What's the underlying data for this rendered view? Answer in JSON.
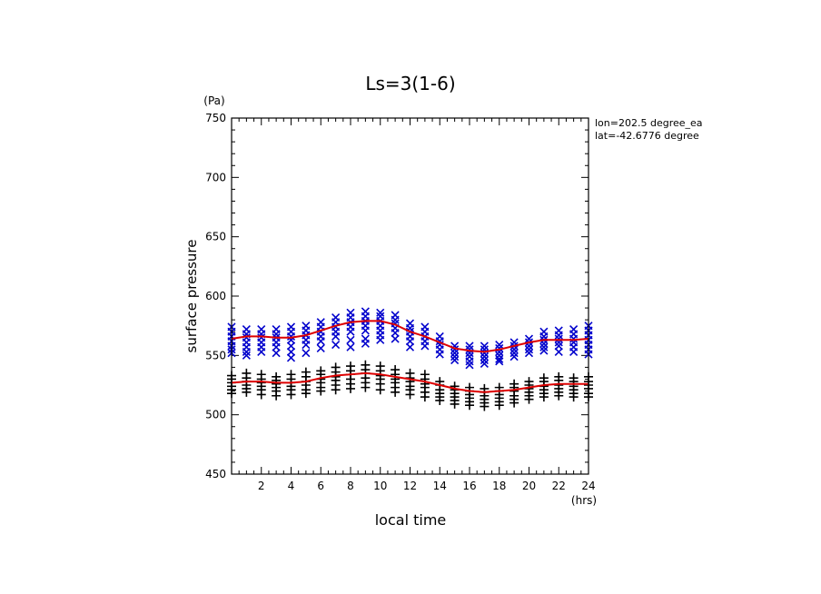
{
  "chart_data": {
    "type": "scatter",
    "title": "Ls=3(1-6)",
    "xlabel": "local time",
    "ylabel": "surface pressure",
    "x_unit": "(hrs)",
    "y_unit": "(Pa)",
    "xlim": [
      0,
      24
    ],
    "ylim": [
      450,
      750
    ],
    "x_ticks": [
      2,
      4,
      6,
      8,
      10,
      12,
      14,
      16,
      18,
      20,
      22,
      24
    ],
    "y_ticks": [
      450,
      500,
      550,
      600,
      650,
      700,
      750
    ],
    "annotations": [
      "lon=202.5 degree_ea",
      "lat=-42.6776 degree"
    ],
    "colors": {
      "upper_points": "#0000cc",
      "lower_points": "#000000",
      "fit": "#dd0000"
    },
    "series": [
      {
        "marker": "x",
        "x": [
          0,
          0,
          0,
          0,
          0,
          0,
          0,
          1,
          1,
          1,
          1,
          1,
          1,
          1,
          2,
          2,
          2,
          2,
          2,
          2,
          3,
          3,
          3,
          3,
          3,
          3,
          4,
          4,
          4,
          4,
          4,
          4,
          4,
          5,
          5,
          5,
          5,
          5,
          5,
          6,
          6,
          6,
          6,
          6,
          6,
          7,
          7,
          7,
          7,
          7,
          7,
          8,
          8,
          8,
          8,
          8,
          8,
          8,
          9,
          9,
          9,
          9,
          9,
          9,
          9,
          10,
          10,
          10,
          10,
          10,
          10,
          10,
          11,
          11,
          11,
          11,
          11,
          11,
          12,
          12,
          12,
          12,
          12,
          12,
          13,
          13,
          13,
          13,
          13,
          14,
          14,
          14,
          14,
          14,
          15,
          15,
          15,
          15,
          15,
          16,
          16,
          16,
          16,
          16,
          16,
          17,
          17,
          17,
          17,
          17,
          17,
          18,
          18,
          18,
          18,
          18,
          18,
          19,
          19,
          19,
          19,
          19,
          20,
          20,
          20,
          20,
          20,
          21,
          21,
          21,
          21,
          21,
          21,
          22,
          22,
          22,
          22,
          22,
          22,
          23,
          23,
          23,
          23,
          23,
          23,
          24,
          24,
          24,
          24,
          24,
          24,
          24
        ],
        "y": [
          574,
          570,
          566,
          562,
          558,
          555,
          552,
          572,
          568,
          565,
          561,
          557,
          553,
          550,
          572,
          568,
          565,
          561,
          557,
          553,
          572,
          568,
          565,
          561,
          557,
          552,
          574,
          570,
          566,
          563,
          558,
          553,
          548,
          575,
          571,
          567,
          563,
          559,
          552,
          578,
          574,
          570,
          566,
          562,
          556,
          582,
          578,
          574,
          570,
          566,
          559,
          586,
          582,
          578,
          574,
          570,
          563,
          557,
          587,
          583,
          579,
          575,
          571,
          564,
          560,
          586,
          583,
          579,
          575,
          571,
          567,
          563,
          584,
          580,
          577,
          573,
          569,
          564,
          577,
          573,
          570,
          566,
          562,
          557,
          574,
          570,
          566,
          562,
          558,
          566,
          562,
          559,
          555,
          551,
          558,
          555,
          552,
          549,
          546,
          558,
          555,
          552,
          549,
          545,
          542,
          558,
          555,
          552,
          549,
          546,
          543,
          559,
          556,
          553,
          550,
          547,
          545,
          561,
          558,
          555,
          552,
          549,
          564,
          561,
          558,
          555,
          552,
          570,
          566,
          563,
          560,
          557,
          554,
          571,
          567,
          564,
          561,
          558,
          553,
          572,
          568,
          564,
          561,
          557,
          553,
          575,
          571,
          567,
          563,
          559,
          555,
          551
        ]
      },
      {
        "marker": "+",
        "x": [
          0,
          0,
          0,
          0,
          0,
          0,
          1,
          1,
          1,
          1,
          1,
          1,
          2,
          2,
          2,
          2,
          2,
          2,
          3,
          3,
          3,
          3,
          3,
          3,
          4,
          4,
          4,
          4,
          4,
          4,
          5,
          5,
          5,
          5,
          5,
          5,
          6,
          6,
          6,
          6,
          6,
          6,
          7,
          7,
          7,
          7,
          7,
          7,
          8,
          8,
          8,
          8,
          8,
          8,
          9,
          9,
          9,
          9,
          9,
          9,
          10,
          10,
          10,
          10,
          10,
          10,
          11,
          11,
          11,
          11,
          11,
          11,
          12,
          12,
          12,
          12,
          12,
          12,
          13,
          13,
          13,
          13,
          13,
          13,
          14,
          14,
          14,
          14,
          14,
          14,
          15,
          15,
          15,
          15,
          15,
          15,
          16,
          16,
          16,
          16,
          16,
          16,
          17,
          17,
          17,
          17,
          17,
          17,
          18,
          18,
          18,
          18,
          18,
          18,
          19,
          19,
          19,
          19,
          19,
          19,
          20,
          20,
          20,
          20,
          20,
          20,
          21,
          21,
          21,
          21,
          21,
          21,
          22,
          22,
          22,
          22,
          22,
          22,
          23,
          23,
          23,
          23,
          23,
          23,
          24,
          24,
          24,
          24,
          24,
          24
        ],
        "y": [
          533,
          530,
          527,
          524,
          521,
          518,
          535,
          531,
          528,
          525,
          522,
          519,
          534,
          530,
          527,
          524,
          521,
          517,
          532,
          529,
          526,
          523,
          520,
          516,
          534,
          530,
          527,
          524,
          521,
          517,
          536,
          532,
          528,
          525,
          521,
          518,
          537,
          534,
          530,
          527,
          523,
          520,
          540,
          536,
          532,
          529,
          525,
          521,
          541,
          537,
          534,
          530,
          526,
          522,
          542,
          538,
          535,
          531,
          527,
          523,
          541,
          537,
          533,
          530,
          526,
          521,
          538,
          534,
          530,
          527,
          523,
          519,
          535,
          531,
          528,
          524,
          521,
          517,
          534,
          530,
          526,
          523,
          519,
          515,
          528,
          525,
          521,
          518,
          515,
          512,
          524,
          521,
          518,
          515,
          512,
          509,
          523,
          520,
          517,
          514,
          511,
          508,
          522,
          519,
          516,
          513,
          510,
          507,
          523,
          520,
          517,
          514,
          511,
          508,
          526,
          523,
          520,
          516,
          513,
          510,
          528,
          525,
          522,
          519,
          516,
          513,
          531,
          528,
          524,
          521,
          518,
          515,
          532,
          529,
          525,
          522,
          519,
          516,
          531,
          528,
          524,
          521,
          518,
          515,
          532,
          528,
          525,
          522,
          518,
          515
        ]
      },
      {
        "marker": "line",
        "x": [
          0,
          1,
          2,
          3,
          4,
          5,
          6,
          7,
          8,
          9,
          10,
          11,
          12,
          13,
          14,
          15,
          16,
          17,
          18,
          19,
          20,
          21,
          22,
          23,
          24
        ],
        "y": [
          564,
          566,
          566,
          565,
          565,
          567,
          571,
          575,
          578,
          579,
          579,
          576,
          570,
          566,
          561,
          556,
          554,
          553,
          555,
          558,
          561,
          563,
          563,
          563,
          564
        ]
      },
      {
        "marker": "line",
        "x": [
          0,
          1,
          2,
          3,
          4,
          5,
          6,
          7,
          8,
          9,
          10,
          11,
          12,
          13,
          14,
          15,
          16,
          17,
          18,
          19,
          20,
          21,
          22,
          23,
          24
        ],
        "y": [
          527,
          528,
          528,
          527,
          527,
          528,
          531,
          533,
          534,
          535,
          534,
          532,
          530,
          528,
          525,
          522,
          520,
          519,
          520,
          521,
          523,
          525,
          526,
          526,
          526
        ]
      }
    ]
  }
}
